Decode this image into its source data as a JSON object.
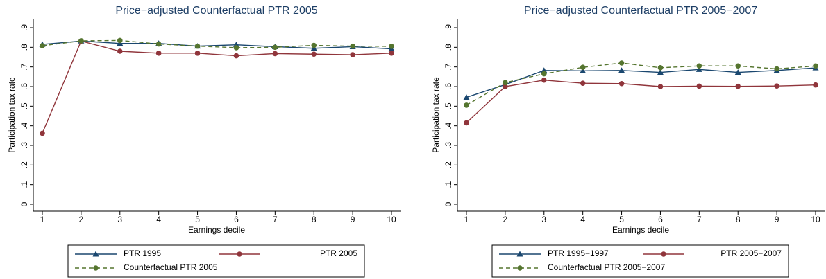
{
  "chart_data": [
    {
      "type": "line",
      "title": "Price−adjusted Counterfactual PTR 2005",
      "x_label": "Earnings decile",
      "y_label": "Participation tax rate",
      "x": [
        1,
        2,
        3,
        4,
        5,
        6,
        7,
        8,
        9,
        10
      ],
      "xlim": [
        1,
        10
      ],
      "xticks": [
        1,
        2,
        3,
        4,
        5,
        6,
        7,
        8,
        9,
        10
      ],
      "ylim": [
        0,
        0.9
      ],
      "yticks": [
        0,
        {
          "value": 0.1,
          "label": ".1"
        },
        {
          "value": 0.2,
          "label": ".2"
        },
        {
          "value": 0.3,
          "label": ".3"
        },
        {
          "value": 0.4,
          "label": ".4"
        },
        {
          "value": 0.5,
          "label": ".5"
        },
        {
          "value": 0.6,
          "label": ".6"
        },
        {
          "value": 0.7,
          "label": ".7"
        },
        {
          "value": 0.8,
          "label": ".8"
        },
        {
          "value": 0.9,
          "label": ".9"
        }
      ],
      "series": [
        {
          "name": "PTR 1995",
          "color": "#1a476f",
          "marker": "triangle",
          "linestyle": "solid",
          "values": [
            0.815,
            0.832,
            0.82,
            0.82,
            0.806,
            0.813,
            0.803,
            0.795,
            0.803,
            0.792
          ]
        },
        {
          "name": "PTR 2005",
          "color": "#90353b",
          "marker": "circle",
          "linestyle": "solid",
          "values": [
            0.362,
            0.832,
            0.78,
            0.77,
            0.77,
            0.757,
            0.768,
            0.765,
            0.762,
            0.77
          ]
        },
        {
          "name": "Counterfactual PTR 2005",
          "color": "#55752f",
          "marker": "circle",
          "linestyle": "dashed",
          "values": [
            0.808,
            0.833,
            0.835,
            0.817,
            0.806,
            0.798,
            0.8,
            0.81,
            0.806,
            0.805
          ]
        }
      ]
    },
    {
      "type": "line",
      "title": "Price−adjusted Counterfactual PTR 2005−2007",
      "x_label": "Earnings decile",
      "y_label": "Participation tax rate",
      "x": [
        1,
        2,
        3,
        4,
        5,
        6,
        7,
        8,
        9,
        10
      ],
      "xlim": [
        1,
        10
      ],
      "xticks": [
        1,
        2,
        3,
        4,
        5,
        6,
        7,
        8,
        9,
        10
      ],
      "ylim": [
        0,
        0.9
      ],
      "yticks": [
        0,
        {
          "value": 0.1,
          "label": ".1"
        },
        {
          "value": 0.2,
          "label": ".2"
        },
        {
          "value": 0.3,
          "label": ".3"
        },
        {
          "value": 0.4,
          "label": ".4"
        },
        {
          "value": 0.5,
          "label": ".5"
        },
        {
          "value": 0.6,
          "label": ".6"
        },
        {
          "value": 0.7,
          "label": ".7"
        },
        {
          "value": 0.8,
          "label": ".8"
        },
        {
          "value": 0.9,
          "label": ".9"
        }
      ],
      "series": [
        {
          "name": "PTR 1995−1997",
          "color": "#1a476f",
          "marker": "triangle",
          "linestyle": "solid",
          "values": [
            0.545,
            0.61,
            0.682,
            0.68,
            0.682,
            0.672,
            0.687,
            0.672,
            0.682,
            0.695
          ]
        },
        {
          "name": "PTR 2005−2007",
          "color": "#90353b",
          "marker": "circle",
          "linestyle": "solid",
          "values": [
            0.415,
            0.6,
            0.633,
            0.617,
            0.615,
            0.6,
            0.602,
            0.601,
            0.603,
            0.608
          ]
        },
        {
          "name": "Counterfactual PTR 2005−2007",
          "color": "#55752f",
          "marker": "circle",
          "linestyle": "dashed",
          "values": [
            0.505,
            0.62,
            0.665,
            0.698,
            0.72,
            0.696,
            0.705,
            0.705,
            0.69,
            0.705
          ]
        }
      ]
    }
  ]
}
